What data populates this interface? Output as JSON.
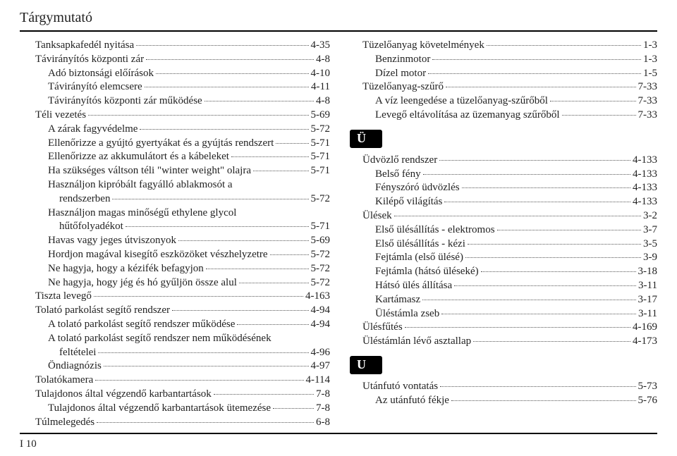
{
  "header": "Tárgymutató",
  "footer": "I 10",
  "left": [
    {
      "l": "Tanksapkafedél nyitása",
      "p": "4-35",
      "indent": 0
    },
    {
      "l": "Távirányítós központi zár",
      "p": "4-8",
      "indent": 0
    },
    {
      "l": "Adó biztonsági előírások",
      "p": "4-10",
      "indent": 1
    },
    {
      "l": "Távirányító elemcsere",
      "p": "4-11",
      "indent": 1
    },
    {
      "l": "Távirányítós központi zár működése",
      "p": "4-8",
      "indent": 1
    },
    {
      "l": "Téli vezetés",
      "p": "5-69",
      "indent": 0
    },
    {
      "l": "A zárak fagyvédelme",
      "p": "5-72",
      "indent": 1
    },
    {
      "l": "Ellenőrizze a gyújtó gyertyákat és a gyújtás rendszert",
      "p": "5-71",
      "indent": 1
    },
    {
      "l": "Ellenőrizze az akkumulátort és a kábeleket",
      "p": "5-71",
      "indent": 1
    },
    {
      "l": "Ha szükséges váltson téli \"winter weight\" olajra",
      "p": "5-71",
      "indent": 1
    },
    {
      "l": "Használjon kipróbált fagyálló ablakmosót a",
      "cont": "rendszerben",
      "p": "5-72",
      "indent": 1
    },
    {
      "l": "Használjon magas minőségű ethylene glycol",
      "cont": "hűtőfolyadékot",
      "p": "5-71",
      "indent": 1
    },
    {
      "l": "Havas vagy jeges útviszonyok",
      "p": "5-69",
      "indent": 1
    },
    {
      "l": "Hordjon magával kisegítő eszközöket vészhelyzetre",
      "p": "5-72",
      "indent": 1
    },
    {
      "l": "Ne hagyja, hogy a kézifék befagyjon",
      "p": "5-72",
      "indent": 1
    },
    {
      "l": "Ne hagyja, hogy jég és hó gyűljön össze alul",
      "p": "5-72",
      "indent": 1
    },
    {
      "l": "Tiszta levegő",
      "p": "4-163",
      "indent": 0
    },
    {
      "l": "Tolató parkolást segítő rendszer",
      "p": "4-94",
      "indent": 0
    },
    {
      "l": "A tolató parkolást segítő rendszer működése",
      "p": "4-94",
      "indent": 1
    },
    {
      "l": "A tolató parkolást segítő rendszer nem működésének",
      "cont": "feltételei",
      "p": "4-96",
      "indent": 1
    },
    {
      "l": "Öndiagnózis",
      "p": "4-97",
      "indent": 1
    },
    {
      "l": "Tolatókamera",
      "p": "4-114",
      "indent": 0
    },
    {
      "l": "Tulajdonos által végzendő karbantartások",
      "p": "7-8",
      "indent": 0
    },
    {
      "l": "Tulajdonos által végzendő karbantartások ütemezése",
      "p": "7-8",
      "indent": 1
    },
    {
      "l": "Túlmelegedés",
      "p": "6-8",
      "indent": 0
    }
  ],
  "right_top": [
    {
      "l": "Tüzelőanyag követelmények",
      "p": "1-3",
      "indent": 0
    },
    {
      "l": "Benzinmotor",
      "p": "1-3",
      "indent": 1
    },
    {
      "l": "Dízel motor",
      "p": "1-5",
      "indent": 1
    },
    {
      "l": "Tüzelőanyag-szűrő",
      "p": "7-33",
      "indent": 0
    },
    {
      "l": "A víz leengedése a tüzelőanyag-szűrőből",
      "p": "7-33",
      "indent": 1
    },
    {
      "l": "Levegő eltávolítása az üzemanyag szűrőből",
      "p": "7-33",
      "indent": 1
    }
  ],
  "section_u_umlaut": "Ü",
  "right_u_umlaut": [
    {
      "l": "Üdvözlő rendszer",
      "p": "4-133",
      "indent": 0
    },
    {
      "l": "Belső fény",
      "p": "4-133",
      "indent": 1
    },
    {
      "l": "Fényszóró üdvözlés",
      "p": "4-133",
      "indent": 1
    },
    {
      "l": "Kilépő világítás",
      "p": "4-133",
      "indent": 1
    },
    {
      "l": "Ülések",
      "p": "3-2",
      "indent": 0
    },
    {
      "l": "Első ülésállítás - elektromos",
      "p": "3-7",
      "indent": 1
    },
    {
      "l": "Első ülésállítás - kézi",
      "p": "3-5",
      "indent": 1
    },
    {
      "l": "Fejtámla (első ülésé)",
      "p": "3-9",
      "indent": 1
    },
    {
      "l": "Fejtámla (hátsó üléseké)",
      "p": "3-18",
      "indent": 1
    },
    {
      "l": "Hátsó ülés állítása",
      "p": "3-11",
      "indent": 1
    },
    {
      "l": "Kartámasz",
      "p": "3-17",
      "indent": 1
    },
    {
      "l": "Üléstámla zseb",
      "p": "3-11",
      "indent": 1
    },
    {
      "l": "Ülésfűtés",
      "p": "4-169",
      "indent": 0
    },
    {
      "l": "Üléstámlán lévő asztallap",
      "p": "4-173",
      "indent": 0
    }
  ],
  "section_u": "U",
  "right_u": [
    {
      "l": "Utánfutó vontatás",
      "p": "5-73",
      "indent": 0
    },
    {
      "l": "Az utánfutó fékje",
      "p": "5-76",
      "indent": 1
    }
  ]
}
